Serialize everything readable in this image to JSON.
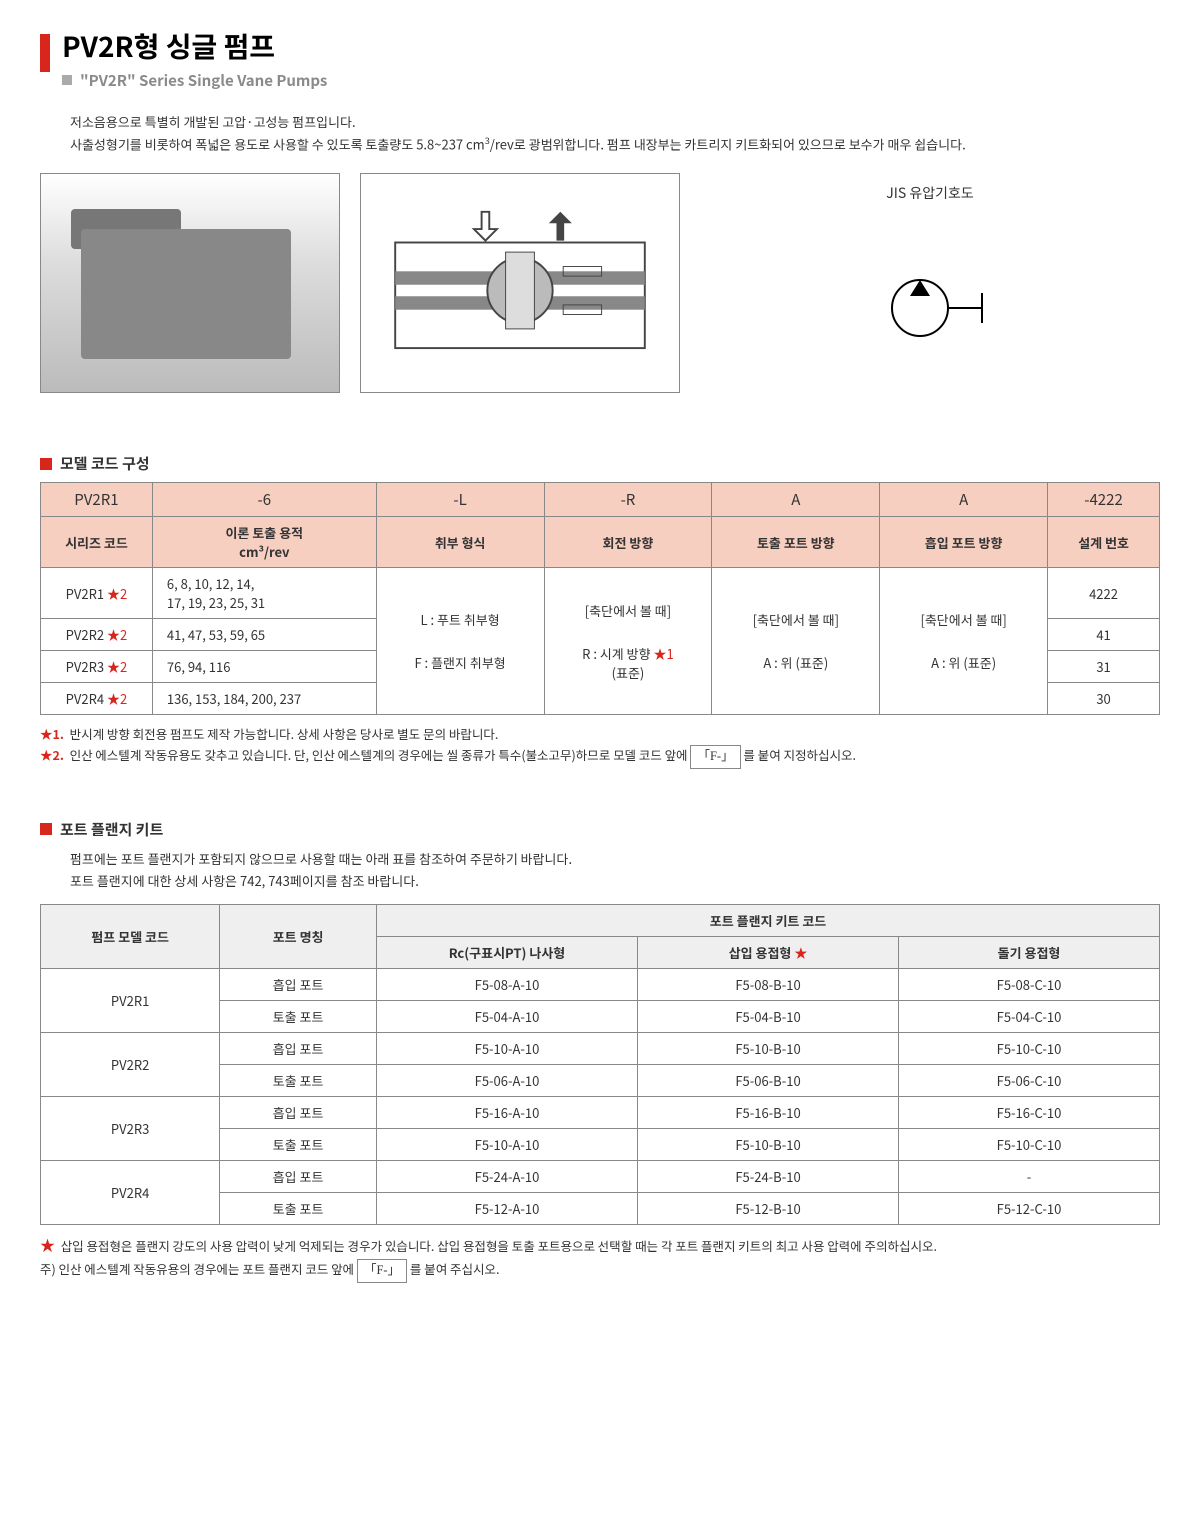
{
  "header": {
    "title": "PV2R형 싱글 펌프",
    "subtitle": "\"PV2R\" Series Single Vane Pumps"
  },
  "intro": {
    "line1": "저소음용으로 특별히 개발된 고압·고성능 펌프입니다.",
    "line2_a": "사출성형기를 비롯하여 폭넓은 용도로 사용할 수 있도록 토출량도 5.8~237 cm",
    "line2_b": "/rev로 광범위합니다. 펌프 내장부는 카트리지 키트화되어 있으므로 보수가 매우 쉽습니다."
  },
  "symbol_label": "JIS 유압기호도",
  "sections": {
    "model_code": "모델 코드 구성",
    "flange_kit": "포트 플랜지 키트"
  },
  "model_table": {
    "top": [
      "PV2R1",
      "-6",
      "-L",
      "-R",
      "A",
      "A",
      "-4222"
    ],
    "sub": [
      "시리즈 코드",
      "이론 토출 용적",
      "취부 형식",
      "회전 방향",
      "토출 포트 방향",
      "흡입 포트 방향",
      "설계 번호"
    ],
    "sub_unit": "cm³/rev",
    "rows": {
      "r1_code": "PV2R1",
      "r1_disp": "6, 8, 10, 12, 14,\n17, 19, 23, 25, 31",
      "r2_code": "PV2R2",
      "r2_disp": "41, 47, 53, 59, 65",
      "r3_code": "PV2R3",
      "r3_disp": "76, 94, 116",
      "r4_code": "PV2R4",
      "r4_disp": "136, 153, 184, 200, 237",
      "mount_L": "L : 푸트 취부형",
      "mount_F": "F : 플랜지 취부형",
      "view_note": "[축단에서 볼 때]",
      "rot_R_a": "R : 시계 방향",
      "rot_R_b": "(표준)",
      "port_A": "A : 위 (표준)",
      "design1": "4222",
      "design2": "41",
      "design3": "31",
      "design4": "30",
      "star1": "★1",
      "star2": "★2"
    }
  },
  "model_notes": {
    "n1_pre": "★1.",
    "n1": "반시계 방향 회전용 펌프도 제작 가능합니다. 상세 사항은 당사로 별도 문의 바랍니다.",
    "n2_pre": "★2.",
    "n2_a": "인산 에스텔계 작동유용도 갖추고 있습니다. 단, 인산 에스텔계의 경우에는 씰 종류가 특수(불소고무)하므로 모델 코드 앞에 ",
    "n2_f": "「F-」",
    "n2_b": "를 붙여 지정하십시오."
  },
  "flange_intro": {
    "l1": "펌프에는 포트 플랜지가 포함되지 않으므로 사용할 때는 아래 표를 참조하여 주문하기 바랍니다.",
    "l2": "포트 플랜지에 대한 상세 사항은 742, 743페이지를 참조 바랍니다."
  },
  "flange_table": {
    "h_pump": "펌프 모델 코드",
    "h_port": "포트 명칭",
    "h_kit": "포트 플랜지 키트 코드",
    "h_rc": "Rc(구표시PT) 나사형",
    "h_insert": "삽입 용접형",
    "h_insert_star": "★",
    "h_proj": "돌기 용접형",
    "port_in": "흡입 포트",
    "port_out": "토출 포트",
    "rows": [
      {
        "m": "PV2R1",
        "in": [
          "F5-08-A-10",
          "F5-08-B-10",
          "F5-08-C-10"
        ],
        "out": [
          "F5-04-A-10",
          "F5-04-B-10",
          "F5-04-C-10"
        ]
      },
      {
        "m": "PV2R2",
        "in": [
          "F5-10-A-10",
          "F5-10-B-10",
          "F5-10-C-10"
        ],
        "out": [
          "F5-06-A-10",
          "F5-06-B-10",
          "F5-06-C-10"
        ]
      },
      {
        "m": "PV2R3",
        "in": [
          "F5-16-A-10",
          "F5-16-B-10",
          "F5-16-C-10"
        ],
        "out": [
          "F5-10-A-10",
          "F5-10-B-10",
          "F5-10-C-10"
        ]
      },
      {
        "m": "PV2R4",
        "in": [
          "F5-24-A-10",
          "F5-24-B-10",
          "-"
        ],
        "out": [
          "F5-12-A-10",
          "F5-12-B-10",
          "F5-12-C-10"
        ]
      }
    ]
  },
  "flange_notes": {
    "star_pre": "★",
    "star": "삽입 용접형은 플랜지 강도의 사용 압력이 낮게 억제되는 경우가 있습니다. 삽입 용접형을 토출 포트용으로 선택할 때는 각 포트 플랜지 키트의 최고 사용 압력에 주의하십시오.",
    "note_pre": "주)",
    "note_a": "인산 에스텔계 작동유용의 경우에는 포트 플랜지 코드 앞에    ",
    "note_f": "「F-」",
    "note_b": "를 붙여 주십시오."
  },
  "colors": {
    "red": "#d9261c",
    "header_fill": "#f6cfc0",
    "border": "#888888"
  }
}
